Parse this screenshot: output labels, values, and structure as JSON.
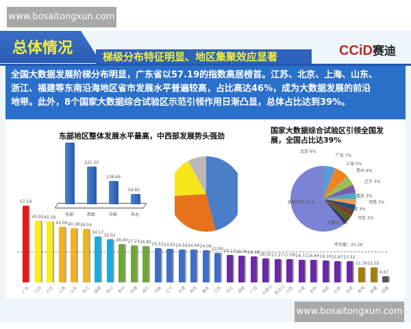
{
  "watermarks": {
    "top": "www.bosaitongxun.com",
    "bottom": "www.bosaitongxun.com"
  },
  "header": {
    "title": "总体情况",
    "subtitle": "梯级分布特征明显、地区集聚效应显著",
    "logo_text": "CCiD",
    "logo_cn": "赛迪",
    "colors": {
      "blue": "#2b5cb4",
      "yellow": "#f5ef3a",
      "logo_red": "#c0282e"
    }
  },
  "intro": {
    "lines": [
      "全国大数据发展阶梯分布明显，广东省以57.19的指数高居榜首。江苏、北京、上海、山东、",
      "浙江、福建等东南沿海地区省市发展水平普遍较高，占比高达46%，成为大数据发展的前沿",
      "地带。此外，8个国家大数据综合试验区示范引领作用日渐凸显，总体占比达到39%。"
    ]
  },
  "chart_data": [
    {
      "type": "bar",
      "title": "东部地区整体发展水平最高，中西部发展势头强劲",
      "categories": [
        "东部",
        "西部",
        "中部",
        "东北"
      ],
      "values": [
        364.13,
        221.33,
        138.69,
        58.82
      ],
      "colors": [
        "#3d73c4"
      ]
    },
    {
      "type": "pie",
      "title": "东部地区整体发展水平最高，中西部发展势头强劲",
      "labels": [
        "东部",
        "西部",
        "中部",
        "东北"
      ],
      "values": [
        46,
        28,
        18,
        8
      ],
      "colors": [
        "#4a7fc8",
        "#e8711c",
        "#f7e61a",
        "#bdb7b7"
      ]
    },
    {
      "type": "pie",
      "title": "国家大数据综合试验区引领全国发展，全国占比达39%",
      "labels": [
        "北京",
        "广东",
        "上海",
        "贵州",
        "辽宁",
        "重庆",
        "河南",
        "天津",
        "河北",
        "内蒙古",
        "其他省市"
      ],
      "values": [
        6,
        7,
        5,
        4,
        3,
        3,
        3,
        3,
        3,
        2,
        61
      ],
      "colors": [
        "#5b9bd5",
        "#f58220",
        "#9bbb59",
        "#7a5ea8",
        "#4bacc6",
        "#f39a52",
        "#1f4e79",
        "#7b3f2a",
        "#4f6228",
        "#3b3170",
        "#7b83d6"
      ],
      "annotation": "平均值：25.26"
    },
    {
      "type": "bar",
      "title": "",
      "categories": [
        "广东",
        "江苏",
        "北京",
        "上海",
        "山东",
        "浙江",
        "福建",
        "四川",
        "贵州",
        "安徽",
        "湖北",
        "河南",
        "辽宁",
        "天津",
        "陕西",
        "重庆",
        "江西",
        "河北",
        "湖南",
        "广西",
        "内蒙古",
        "黑龙江",
        "山西",
        "宁夏",
        "吉林",
        "海南",
        "云南",
        "甘肃",
        "青海",
        "新疆",
        "西藏"
      ],
      "values": [
        57.19,
        45.92,
        45.18,
        41.06,
        40.38,
        39.54,
        34.17,
        32.02,
        28.49,
        27.23,
        26.85,
        25.53,
        24.91,
        24.59,
        24.44,
        24.08,
        22.0,
        20.12,
        19.76,
        19.38,
        18.02,
        17.27,
        17.09,
        16.71,
        16.64,
        16.16,
        15.67,
        15.52,
        11.39,
        11.02,
        4.67
      ],
      "colors": [
        "#e41a1a",
        "#f7ee1a",
        "#f7ee1a",
        "#f2b31c",
        "#f2b31c",
        "#f2b31c",
        "#1ba9e0",
        "#1ba9e0",
        "#6fa838",
        "#6fa838",
        "#6fa838",
        "#3d6fc6",
        "#3d6fc6",
        "#3d6fc6",
        "#3d6fc6",
        "#3d6fc6",
        "#3d6fc6",
        "#6a2aa6",
        "#6a2aa6",
        "#6a2aa6",
        "#6a2aa6",
        "#6a2aa6",
        "#6a2aa6",
        "#6a2aa6",
        "#6a2aa6",
        "#6a2aa6",
        "#6a2aa6",
        "#6a2aa6",
        "#a57e0b",
        "#a57e0b",
        "#555555"
      ],
      "average": 25.26,
      "ylim": [
        0,
        60
      ]
    }
  ]
}
